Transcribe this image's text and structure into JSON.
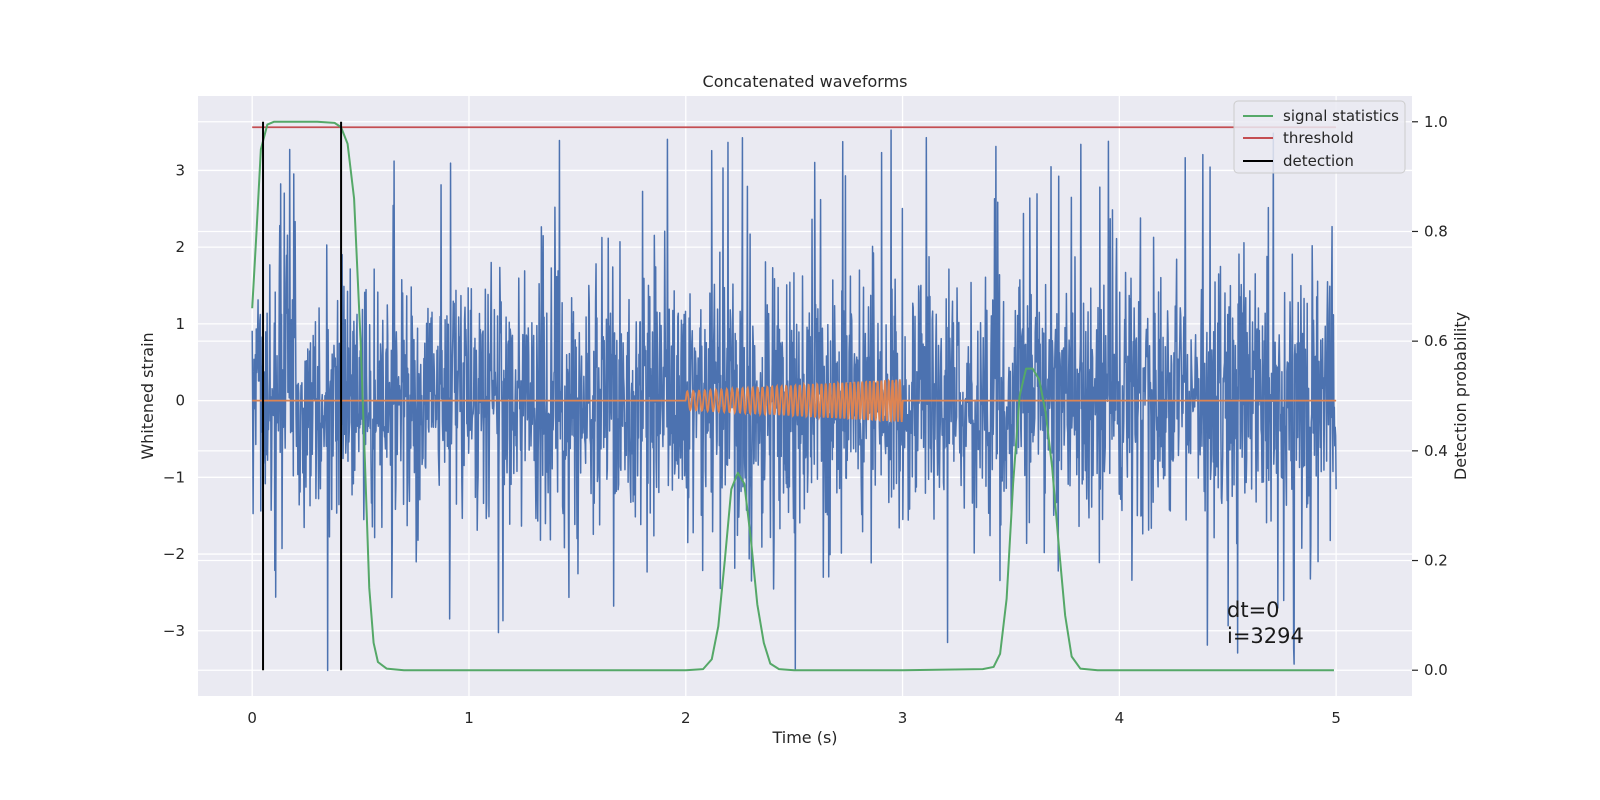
{
  "chart_data": {
    "type": "line",
    "title": "Concatenated waveforms",
    "xlabel": "Time (s)",
    "ylabel": "Whitened strain",
    "y2label": "Detection probability",
    "xlim": [
      -0.25,
      5.35
    ],
    "ylim": [
      -3.85,
      3.97
    ],
    "y2lim": [
      -0.047,
      1.047
    ],
    "xticks": [
      0,
      1,
      2,
      3,
      4,
      5
    ],
    "yticks": [
      -3,
      -2,
      -1,
      0,
      1,
      2,
      3
    ],
    "y2ticks": [
      0.0,
      0.2,
      0.4,
      0.6,
      0.8,
      1.0
    ],
    "grid": true,
    "legend_position": "top-right",
    "series": [
      {
        "name": "",
        "kind": "noise",
        "axis": "left",
        "color": "#4c72b0",
        "x_range": [
          0,
          5
        ],
        "typical_amplitude": 0.8,
        "peak_amplitude": 3.55
      },
      {
        "name": "",
        "kind": "chirp",
        "axis": "left",
        "color": "#dd8452",
        "x_range": [
          0,
          5
        ],
        "chirp_range": [
          2,
          3
        ],
        "amplitude_start": 0.12,
        "amplitude_end": 0.28
      },
      {
        "name": "signal statistics",
        "axis": "right",
        "color": "#55a868",
        "points": [
          [
            0.0,
            0.66
          ],
          [
            0.02,
            0.8
          ],
          [
            0.04,
            0.95
          ],
          [
            0.07,
            0.995
          ],
          [
            0.1,
            1.0
          ],
          [
            0.2,
            1.0
          ],
          [
            0.3,
            1.0
          ],
          [
            0.38,
            0.998
          ],
          [
            0.41,
            0.99
          ],
          [
            0.44,
            0.96
          ],
          [
            0.47,
            0.86
          ],
          [
            0.5,
            0.6
          ],
          [
            0.52,
            0.38
          ],
          [
            0.54,
            0.15
          ],
          [
            0.56,
            0.05
          ],
          [
            0.58,
            0.015
          ],
          [
            0.62,
            0.003
          ],
          [
            0.7,
            0.0
          ],
          [
            1.0,
            0.0
          ],
          [
            1.5,
            0.0
          ],
          [
            2.0,
            0.0
          ],
          [
            2.08,
            0.002
          ],
          [
            2.12,
            0.02
          ],
          [
            2.15,
            0.08
          ],
          [
            2.18,
            0.2
          ],
          [
            2.21,
            0.33
          ],
          [
            2.24,
            0.36
          ],
          [
            2.27,
            0.34
          ],
          [
            2.3,
            0.24
          ],
          [
            2.33,
            0.12
          ],
          [
            2.36,
            0.05
          ],
          [
            2.39,
            0.012
          ],
          [
            2.43,
            0.002
          ],
          [
            2.5,
            0.0
          ],
          [
            3.0,
            0.0
          ],
          [
            3.2,
            0.001
          ],
          [
            3.37,
            0.002
          ],
          [
            3.42,
            0.006
          ],
          [
            3.45,
            0.03
          ],
          [
            3.48,
            0.13
          ],
          [
            3.51,
            0.34
          ],
          [
            3.54,
            0.5
          ],
          [
            3.57,
            0.55
          ],
          [
            3.6,
            0.55
          ],
          [
            3.63,
            0.53
          ],
          [
            3.66,
            0.47
          ],
          [
            3.69,
            0.37
          ],
          [
            3.72,
            0.23
          ],
          [
            3.75,
            0.1
          ],
          [
            3.78,
            0.025
          ],
          [
            3.82,
            0.003
          ],
          [
            3.9,
            0.0
          ],
          [
            4.5,
            0.0
          ],
          [
            4.99,
            0.0
          ]
        ]
      },
      {
        "name": "threshold",
        "axis": "right",
        "color": "#c44e52",
        "value": 0.99,
        "x_range": [
          0,
          5
        ]
      },
      {
        "name": "detection",
        "axis": "right",
        "color": "#000000",
        "x": [
          0.05,
          0.41
        ],
        "y_range": [
          0,
          1
        ]
      }
    ],
    "annotations": [
      "dt=0",
      "i=3294"
    ]
  }
}
